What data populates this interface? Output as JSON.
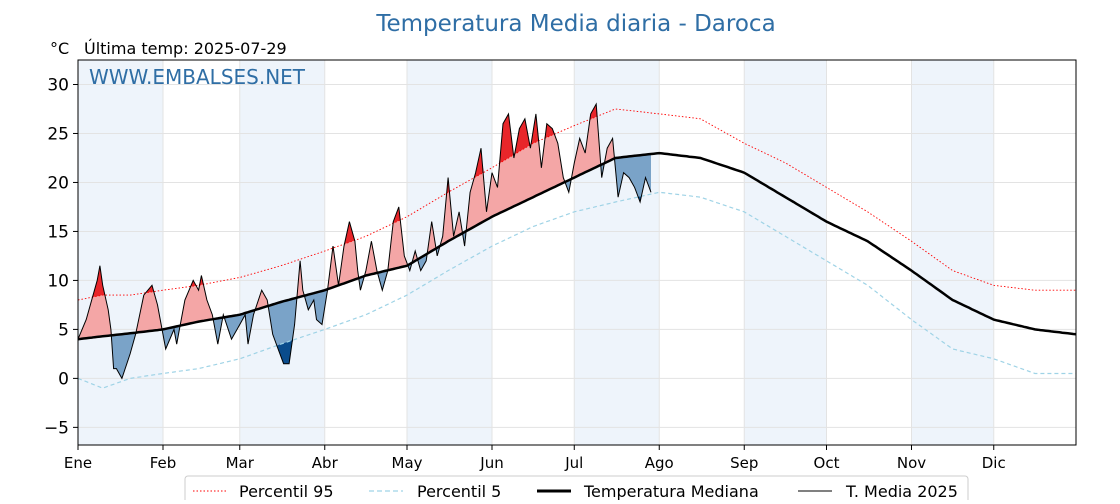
{
  "chart_data": {
    "type": "line",
    "title": "Temperatura Media diaria - Daroca",
    "unit_label": "°C",
    "subtitle": "Última temp: 2025-07-29",
    "watermark": "WWW.EMBALSES.NET",
    "ylim": [
      -6.8,
      32.5
    ],
    "yticks": [
      -5,
      0,
      5,
      10,
      15,
      20,
      25,
      30
    ],
    "xlim": [
      1,
      365
    ],
    "months": [
      {
        "label": "Ene",
        "day": 1
      },
      {
        "label": "Feb",
        "day": 32
      },
      {
        "label": "Mar",
        "day": 60
      },
      {
        "label": "Abr",
        "day": 91
      },
      {
        "label": "May",
        "day": 121
      },
      {
        "label": "Jun",
        "day": 152
      },
      {
        "label": "Jul",
        "day": 182
      },
      {
        "label": "Ago",
        "day": 213
      },
      {
        "label": "Sep",
        "day": 244
      },
      {
        "label": "Oct",
        "day": 274
      },
      {
        "label": "Nov",
        "day": 305
      },
      {
        "label": "Dic",
        "day": 335
      }
    ],
    "shaded_months": [
      [
        1,
        32
      ],
      [
        60,
        91
      ],
      [
        121,
        152
      ],
      [
        182,
        213
      ],
      [
        244,
        274
      ],
      [
        305,
        335
      ]
    ],
    "grid": true,
    "legend_position": "bottom",
    "colors": {
      "p95": "#ff0000",
      "p5": "#9fd3e6",
      "median": "#000000",
      "current": "#000000",
      "above_light": "#f4a6a6",
      "above_strong": "#e8262a",
      "below_light": "#7aa3c8",
      "below_strong": "#0a4c8c",
      "shade": "#eef4fb",
      "title": "#2f6ea5"
    },
    "series": [
      {
        "name": "Percentil 95",
        "style": "dotted-red",
        "x": [
          1,
          10,
          20,
          32,
          45,
          60,
          75,
          91,
          106,
          121,
          136,
          152,
          167,
          182,
          197,
          213,
          228,
          244,
          259,
          274,
          289,
          305,
          320,
          335,
          350,
          365
        ],
        "y": [
          8,
          8.5,
          8.5,
          9,
          9.5,
          10.3,
          11.5,
          13,
          14.5,
          16.5,
          19,
          21.5,
          24,
          25.8,
          27.5,
          27,
          26.5,
          24,
          22,
          19.5,
          17,
          14,
          11,
          9.5,
          9,
          9
        ]
      },
      {
        "name": "Percentil 5",
        "style": "dashed-lightblue",
        "x": [
          1,
          10,
          20,
          32,
          45,
          60,
          75,
          91,
          106,
          121,
          136,
          152,
          167,
          182,
          197,
          213,
          228,
          244,
          259,
          274,
          289,
          305,
          320,
          335,
          350,
          365
        ],
        "y": [
          0,
          -1,
          0,
          0.5,
          1,
          2,
          3.5,
          5,
          6.5,
          8.5,
          11,
          13.5,
          15.5,
          17,
          18,
          19,
          18.5,
          17,
          14.5,
          12,
          9.5,
          6,
          3,
          2,
          0.5,
          0.5
        ]
      },
      {
        "name": "Temperatura Mediana",
        "style": "thick-black",
        "x": [
          1,
          10,
          20,
          32,
          45,
          60,
          75,
          91,
          106,
          121,
          136,
          152,
          167,
          182,
          197,
          213,
          228,
          244,
          259,
          274,
          289,
          305,
          320,
          335,
          350,
          365
        ],
        "y": [
          4,
          4.3,
          4.6,
          5,
          5.8,
          6.5,
          7.8,
          9,
          10.5,
          11.5,
          14,
          16.5,
          18.5,
          20.5,
          22.5,
          23,
          22.5,
          21,
          18.5,
          16,
          14,
          11,
          8,
          6,
          5,
          4.5
        ]
      },
      {
        "name": "T. Media 2025",
        "style": "thin-black",
        "x": [
          1,
          4,
          8,
          9,
          10,
          12,
          13,
          14,
          15,
          17,
          20,
          22,
          25,
          28,
          30,
          33,
          36,
          37,
          38,
          40,
          43,
          45,
          46,
          48,
          50,
          52,
          54,
          57,
          60,
          62,
          63,
          65,
          68,
          70,
          72,
          74,
          76,
          78,
          80,
          82,
          83,
          85,
          87,
          88,
          90,
          92,
          94,
          96,
          98,
          100,
          102,
          103,
          104,
          106,
          108,
          110,
          112,
          114,
          116,
          118,
          120,
          122,
          124,
          126,
          128,
          130,
          132,
          134,
          136,
          138,
          140,
          142,
          144,
          146,
          148,
          150,
          152,
          154,
          156,
          158,
          160,
          162,
          164,
          166,
          168,
          170,
          172,
          174,
          176,
          178,
          180,
          182,
          184,
          186,
          188,
          190,
          192,
          194,
          196,
          198,
          200,
          202,
          204,
          206,
          208,
          210
        ],
        "y": [
          4,
          6,
          10,
          11.5,
          9.5,
          7,
          5,
          1,
          1,
          0,
          2.5,
          4.5,
          8.5,
          9.5,
          7.5,
          3,
          5,
          3.5,
          5,
          8,
          10,
          9,
          10.5,
          8,
          6.5,
          3.5,
          6.5,
          4,
          5.5,
          6.5,
          3.5,
          6.5,
          9,
          8,
          4.5,
          3,
          1.5,
          1.5,
          5.5,
          12,
          9,
          7,
          8,
          6,
          5.5,
          9,
          13.5,
          9.5,
          13.5,
          16,
          14,
          11,
          9,
          11,
          14,
          11,
          9,
          11,
          16,
          17.5,
          12.5,
          11,
          13,
          11,
          12,
          16,
          12.5,
          14.5,
          20.5,
          14.5,
          17,
          13.5,
          19,
          21,
          23.5,
          17,
          21,
          19.5,
          26,
          27,
          22.5,
          25.5,
          26.5,
          23.5,
          27,
          21.5,
          26,
          25.5,
          24,
          20.5,
          19,
          22,
          24.5,
          23,
          27,
          28,
          20.5,
          23.5,
          24.5,
          18.5,
          21,
          20.5,
          19.5,
          18,
          20.5,
          19
        ]
      }
    ]
  }
}
